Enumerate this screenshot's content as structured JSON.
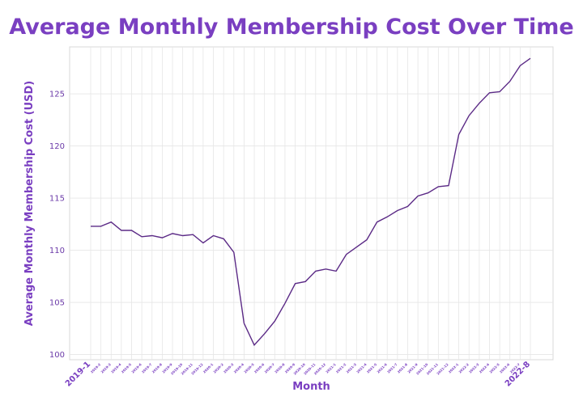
{
  "chart_data": {
    "type": "line",
    "title": "Average Monthly Membership Cost Over Time",
    "xlabel": "Month",
    "ylabel": "Average Monthly Membership Cost (USD)",
    "ylim": [
      99.5,
      129.5
    ],
    "yticks": [
      100,
      105,
      110,
      115,
      120,
      125
    ],
    "grid": true,
    "line_color": "#5b2a86",
    "accent_color": "#7a3fc1",
    "x": [
      "2019-1",
      "2019-2",
      "2019-3",
      "2019-4",
      "2019-5",
      "2019-6",
      "2019-7",
      "2019-8",
      "2019-9",
      "2019-10",
      "2019-11",
      "2019-12",
      "2020-1",
      "2020-2",
      "2020-3",
      "2020-4",
      "2020-5",
      "2020-6",
      "2020-7",
      "2020-8",
      "2020-9",
      "2020-10",
      "2020-11",
      "2020-12",
      "2021-1",
      "2021-2",
      "2021-3",
      "2021-4",
      "2021-5",
      "2021-6",
      "2021-7",
      "2021-8",
      "2021-9",
      "2021-10",
      "2021-11",
      "2021-12",
      "2022-1",
      "2022-2",
      "2022-3",
      "2022-4",
      "2022-5",
      "2022-6",
      "2022-7",
      "2022-8"
    ],
    "series": [
      {
        "values": [
          112.3,
          112.3,
          112.7,
          111.9,
          111.9,
          111.3,
          111.4,
          111.2,
          111.6,
          111.4,
          111.5,
          110.7,
          111.4,
          111.1,
          109.8,
          103.0,
          100.9,
          102.0,
          103.2,
          104.9,
          106.8,
          107.0,
          108.0,
          108.2,
          108.0,
          109.6,
          110.3,
          111.0,
          112.7,
          113.2,
          113.8,
          114.2,
          115.2,
          115.5,
          116.1,
          116.2,
          121.1,
          122.9,
          124.1,
          125.1,
          125.2,
          126.2,
          127.7,
          128.4
        ]
      }
    ]
  }
}
